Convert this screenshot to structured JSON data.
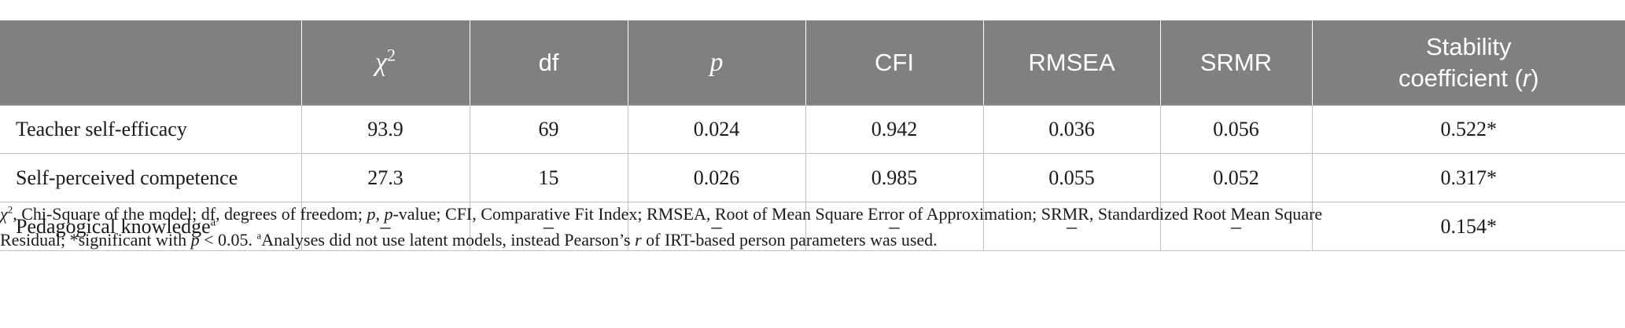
{
  "table": {
    "headers": [
      {
        "label": ""
      },
      {
        "label": "χ",
        "sup": "2"
      },
      {
        "label": "df"
      },
      {
        "label": "p"
      },
      {
        "label": "CFI"
      },
      {
        "label": "RMSEA"
      },
      {
        "label": "SRMR"
      },
      {
        "label_line1": "Stability",
        "label_line2_prefix": "coefficient (",
        "label_line2_italic": "r",
        "label_line2_suffix": ")"
      }
    ],
    "rows": [
      {
        "label": "Teacher self-efficacy",
        "chi2": "93.9",
        "df": "69",
        "p": "0.024",
        "cfi": "0.942",
        "rmsea": "0.036",
        "srmr": "0.056",
        "r": "0.522*"
      },
      {
        "label": "Self-perceived competence",
        "chi2": "27.3",
        "df": "15",
        "p": "0.026",
        "cfi": "0.985",
        "rmsea": "0.055",
        "srmr": "0.052",
        "r": "0.317*"
      },
      {
        "label": "Pedagogical knowledge",
        "label_sup": "a",
        "chi2": "–",
        "df": "–",
        "p": "–",
        "cfi": "–",
        "rmsea": "–",
        "srmr": "–",
        "r": "0.154*"
      }
    ]
  },
  "footnote": {
    "line1_chi": "χ",
    "line1_chi_sup": "2",
    "line1_a": ", Chi-Square of the model; df, degrees of freedom; ",
    "line1_p": "p",
    "line1_b": ", ",
    "line1_p2": "p",
    "line1_c": "-value; CFI, Comparative Fit Index; RMSEA, Root of Mean Square Error of Approximation; SRMR, Standardized Root Mean Square",
    "line2_a": "Residual; *significant with ",
    "line2_p": "p",
    "line2_b": " < 0.05. ",
    "line2_sup": "a",
    "line2_c": "Analyses did not use latent models, instead Pearson’s ",
    "line2_r": "r",
    "line2_d": " of IRT-based person parameters was used."
  }
}
